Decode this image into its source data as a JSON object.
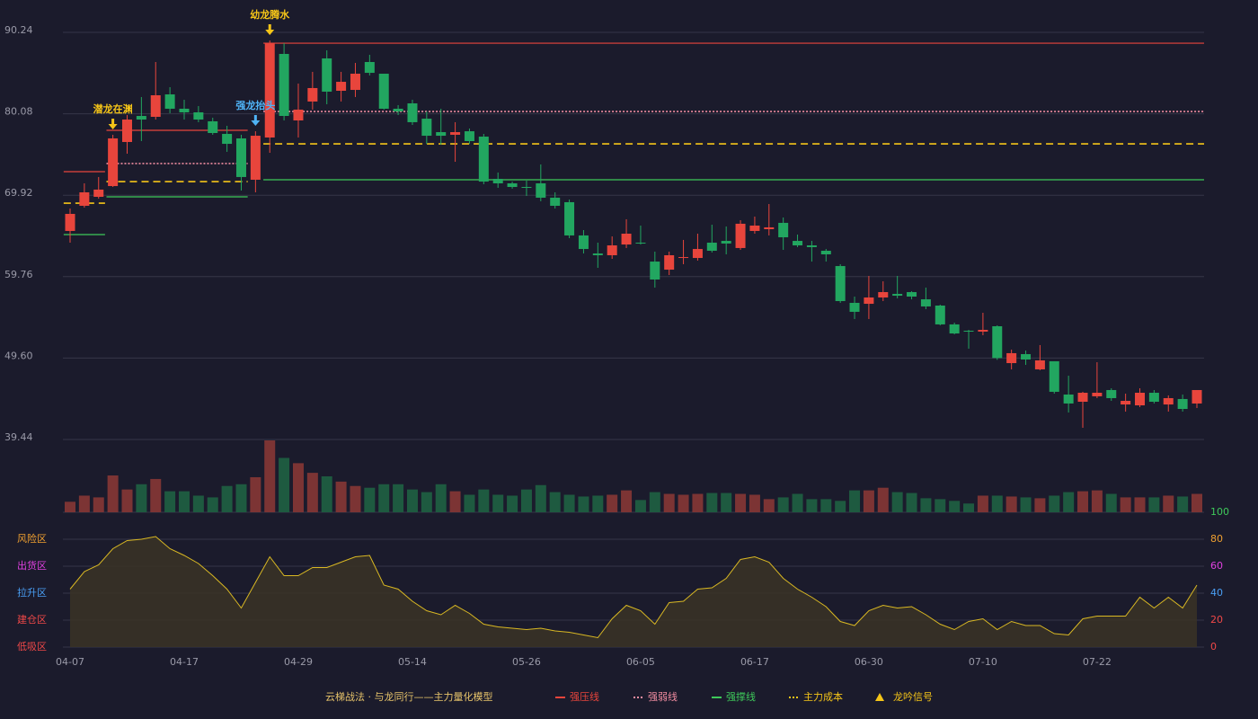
{
  "chart_data": [
    {
      "type": "candlestick",
      "categories": [
        "04-07",
        null,
        null,
        null,
        null,
        null,
        null,
        null,
        "04-17",
        null,
        null,
        null,
        null,
        null,
        null,
        null,
        "04-29",
        null,
        null,
        null,
        null,
        null,
        null,
        null,
        "05-14",
        null,
        null,
        null,
        null,
        null,
        null,
        null,
        "05-26",
        null,
        null,
        null,
        null,
        null,
        null,
        null,
        "06-05",
        null,
        null,
        null,
        null,
        null,
        null,
        null,
        "06-17",
        null,
        null,
        null,
        null,
        null,
        null,
        null,
        "06-30",
        null,
        null,
        null,
        null,
        null,
        null,
        null,
        "07-10",
        null,
        null,
        null,
        null,
        null,
        null,
        null,
        "07-22",
        null,
        null,
        null,
        null,
        null,
        null,
        null
      ],
      "open": [
        65.46,
        68.6,
        69.72,
        71.06,
        76.56,
        79.81,
        79.7,
        82.5,
        80.71,
        80.26,
        79.14,
        77.57,
        77.01,
        71.85,
        77.12,
        87.55,
        79.25,
        81.61,
        86.99,
        82.95,
        83.06,
        86.54,
        85.08,
        80.71,
        81.38,
        79.47,
        77.79,
        77.46,
        77.9,
        77.23,
        71.96,
        71.4,
        70.95,
        71.4,
        69.61,
        69.05,
        64.9,
        62.65,
        62.43,
        63.77,
        64.0,
        61.64,
        60.63,
        62.09,
        62.09,
        64.0,
        64.22,
        63.33,
        65.46,
        65.68,
        66.47,
        64.22,
        63.66,
        62.99,
        61.08,
        56.49,
        56.37,
        57.16,
        57.61,
        57.83,
        56.93,
        56.15,
        53.8,
        53.01,
        52.9,
        53.57,
        48.97,
        50.09,
        48.19,
        49.2,
        45.05,
        44.15,
        44.83,
        45.61,
        43.81,
        43.7,
        45.27,
        43.81,
        44.49,
        43.93
      ],
      "high": [
        68.26,
        71.4,
        72.19,
        77.46,
        79.92,
        82.17,
        86.54,
        83.4,
        81.83,
        81.04,
        79.59,
        78.58,
        77.46,
        77.9,
        89.23,
        88.89,
        83.85,
        85.31,
        88.0,
        85.31,
        86.43,
        87.44,
        85.08,
        81.16,
        81.83,
        80.37,
        80.71,
        79.03,
        78.24,
        77.57,
        72.75,
        71.62,
        71.74,
        73.76,
        70.28,
        69.38,
        65.57,
        64.0,
        64.78,
        66.92,
        66.13,
        62.88,
        62.88,
        64.34,
        65.12,
        66.24,
        66.02,
        66.8,
        67.25,
        68.82,
        67.14,
        65.01,
        64.22,
        63.21,
        61.31,
        57.27,
        59.85,
        59.18,
        59.85,
        57.94,
        58.39,
        56.26,
        54.02,
        53.12,
        55.25,
        53.68,
        50.65,
        50.54,
        51.22,
        49.2,
        47.4,
        45.39,
        49.08,
        45.83,
        45.16,
        45.83,
        45.61,
        44.94,
        45.05,
        45.61
      ],
      "low": [
        64.0,
        68.37,
        69.49,
        70.95,
        75.1,
        76.67,
        79.36,
        80.15,
        79.36,
        79.03,
        77.46,
        75.33,
        70.5,
        70.28,
        75.21,
        79.25,
        77.12,
        80.6,
        81.27,
        81.61,
        82.17,
        84.86,
        80.6,
        79.92,
        78.69,
        76.33,
        76.22,
        74.09,
        76.33,
        71.29,
        70.84,
        70.73,
        69.83,
        69.16,
        68.26,
        64.56,
        62.65,
        60.86,
        61.98,
        63.33,
        63.77,
        58.39,
        59.96,
        61.31,
        61.76,
        62.77,
        62.54,
        63.1,
        65.12,
        64.9,
        63.1,
        63.44,
        61.64,
        61.64,
        56.49,
        54.47,
        54.47,
        56.71,
        57.05,
        56.93,
        55.7,
        53.68,
        52.56,
        50.77,
        52.45,
        49.38,
        48.19,
        48.75,
        48.08,
        45.16,
        42.81,
        40.9,
        44.6,
        44.26,
        42.92,
        43.48,
        43.93,
        42.92,
        42.92,
        43.37
      ],
      "close": [
        67.59,
        70.28,
        70.62,
        77.01,
        79.36,
        79.36,
        82.39,
        80.71,
        80.26,
        79.36,
        77.68,
        76.33,
        72.19,
        77.34,
        88.89,
        79.81,
        80.6,
        83.29,
        82.84,
        84.07,
        85.08,
        85.19,
        80.71,
        80.37,
        79.03,
        77.34,
        77.34,
        77.79,
        76.67,
        71.62,
        71.4,
        70.95,
        70.84,
        69.61,
        68.6,
        64.9,
        63.21,
        62.43,
        63.66,
        65.12,
        63.89,
        59.4,
        62.43,
        62.2,
        63.21,
        62.99,
        63.89,
        66.36,
        66.13,
        65.91,
        64.67,
        63.66,
        63.44,
        62.54,
        56.71,
        55.37,
        57.16,
        57.83,
        57.38,
        57.27,
        56.04,
        53.8,
        52.67,
        52.9,
        53.12,
        49.6,
        50.21,
        49.42,
        49.31,
        45.39,
        43.93,
        45.27,
        45.27,
        44.6,
        44.26,
        45.27,
        44.15,
        44.6,
        43.25,
        45.61
      ],
      "up_color": "#e8453c",
      "down_color": "#22a660",
      "ylim": [
        39.44,
        90.24
      ],
      "yticks": [
        39.44,
        {
          "value": 49.6,
          "label": "49.60"
        },
        59.76,
        69.92,
        80.08,
        90.24
      ],
      "grid": true,
      "levels": [
        {
          "name": "强压线",
          "color": "#e8453c",
          "style": "solid",
          "values": [
            72.86,
            72.86,
            72.86,
            78.02,
            78.02,
            78.02,
            78.02,
            78.02,
            78.02,
            78.02,
            78.02,
            78.02,
            78.02,
            null,
            88.89,
            88.89,
            88.89,
            88.89,
            88.89,
            88.89,
            88.89,
            88.89,
            88.89,
            88.89,
            88.89,
            88.89,
            88.89,
            88.89,
            88.89,
            88.89,
            88.89,
            88.89,
            88.89,
            88.89,
            88.89,
            88.89,
            88.89,
            88.89,
            88.89,
            88.89,
            88.89,
            88.89,
            88.89,
            88.89,
            88.89,
            88.89,
            88.89,
            88.89,
            88.89,
            88.89,
            88.89,
            88.89,
            88.89,
            88.89,
            88.89,
            88.89,
            88.89,
            88.89,
            88.89,
            88.89,
            88.89,
            88.89,
            88.89,
            88.89,
            88.89,
            88.89,
            88.89,
            88.89,
            88.89,
            88.89,
            88.89,
            88.89,
            88.89,
            88.89,
            88.89,
            88.89,
            88.89,
            88.89,
            88.89,
            88.89
          ]
        },
        {
          "name": "强弱线",
          "color": "#f08ca0",
          "style": "dotted",
          "values": [
            null,
            null,
            null,
            73.87,
            73.87,
            73.87,
            73.87,
            73.87,
            73.87,
            73.87,
            73.87,
            73.87,
            73.87,
            null,
            80.37,
            80.37,
            80.37,
            80.37,
            80.37,
            80.37,
            80.37,
            80.37,
            80.37,
            80.37,
            80.37,
            80.37,
            80.37,
            80.37,
            80.37,
            80.37,
            80.37,
            80.37,
            80.37,
            80.37,
            80.37,
            80.37,
            80.37,
            80.37,
            80.37,
            80.37,
            80.37,
            80.37,
            80.37,
            80.37,
            80.37,
            80.37,
            80.37,
            80.37,
            80.37,
            80.37,
            80.37,
            80.37,
            80.37,
            80.37,
            80.37,
            80.37,
            80.37,
            80.37,
            80.37,
            80.37,
            80.37,
            80.37,
            80.37,
            80.37,
            80.37,
            80.37,
            80.37,
            80.37,
            80.37,
            80.37,
            80.37,
            80.37,
            80.37,
            80.37,
            80.37,
            80.37,
            80.37,
            80.37,
            80.37,
            80.37
          ]
        },
        {
          "name": "强撑线",
          "color": "#3ec95a",
          "style": "solid",
          "values": [
            65.01,
            65.01,
            65.01,
            69.72,
            69.72,
            69.72,
            69.72,
            69.72,
            69.72,
            69.72,
            69.72,
            69.72,
            69.72,
            null,
            71.85,
            71.85,
            71.85,
            71.85,
            71.85,
            71.85,
            71.85,
            71.85,
            71.85,
            71.85,
            71.85,
            71.85,
            71.85,
            71.85,
            71.85,
            71.85,
            71.85,
            71.85,
            71.85,
            71.85,
            71.85,
            71.85,
            71.85,
            71.85,
            71.85,
            71.85,
            71.85,
            71.85,
            71.85,
            71.85,
            71.85,
            71.85,
            71.85,
            71.85,
            71.85,
            71.85,
            71.85,
            71.85,
            71.85,
            71.85,
            71.85,
            71.85,
            71.85,
            71.85,
            71.85,
            71.85,
            71.85,
            71.85,
            71.85,
            71.85,
            71.85,
            71.85,
            71.85,
            71.85,
            71.85,
            71.85,
            71.85,
            71.85,
            71.85,
            71.85,
            71.85,
            71.85,
            71.85,
            71.85,
            71.85,
            71.85
          ]
        },
        {
          "name": "主力成本",
          "color": "#f5c518",
          "style": "dashed",
          "values": [
            68.93,
            68.93,
            68.93,
            71.62,
            71.62,
            71.62,
            71.62,
            71.62,
            71.62,
            71.62,
            71.62,
            71.62,
            71.62,
            null,
            76.33,
            76.33,
            76.33,
            76.33,
            76.33,
            76.33,
            76.33,
            76.33,
            76.33,
            76.33,
            76.33,
            76.33,
            76.33,
            76.33,
            76.33,
            76.33,
            76.33,
            76.33,
            76.33,
            76.33,
            76.33,
            76.33,
            76.33,
            76.33,
            76.33,
            76.33,
            76.33,
            76.33,
            76.33,
            76.33,
            76.33,
            76.33,
            76.33,
            76.33,
            76.33,
            76.33,
            76.33,
            76.33,
            76.33,
            76.33,
            76.33,
            76.33,
            76.33,
            76.33,
            76.33,
            76.33,
            76.33,
            76.33,
            76.33,
            76.33,
            76.33,
            76.33,
            76.33,
            76.33,
            76.33,
            76.33,
            76.33,
            76.33,
            76.33,
            76.33,
            76.33,
            76.33,
            76.33,
            76.33,
            76.33,
            76.33
          ]
        }
      ],
      "signals": [
        {
          "index": 3,
          "label": "潜龙在渊",
          "color": "#f5c518"
        },
        {
          "index": 13,
          "label": "强龙抬头",
          "color": "#4fb3f6"
        },
        {
          "index": 14,
          "label": "幼龙腾水",
          "color": "#f5c518"
        }
      ],
      "signal_legend": "龙吟信号",
      "signal_legend_color": "#f5c518",
      "legend_title": "云梯战法 · 与龙同行——主力量化模型",
      "legend_title_color": "#e6c36a"
    },
    {
      "type": "bar",
      "up_color": "#7c3434",
      "down_color": "#1e5a40",
      "values": [
        12,
        19,
        17,
        42,
        26,
        32,
        38,
        24,
        24,
        19,
        17,
        30,
        32,
        40,
        82,
        62,
        56,
        45,
        41,
        35,
        30,
        28,
        32,
        32,
        26,
        23,
        32,
        24,
        20,
        26,
        20,
        19,
        26,
        31,
        23,
        20,
        18,
        19,
        20,
        25,
        14,
        23,
        21,
        20,
        21,
        22,
        22,
        21,
        20,
        15,
        17,
        21,
        15,
        15,
        13,
        25,
        25,
        28,
        23,
        22,
        16,
        15,
        13,
        10,
        19,
        19,
        18,
        17,
        16,
        19,
        23,
        24,
        25,
        21,
        17,
        17,
        17,
        19,
        18,
        21
      ]
    },
    {
      "type": "line",
      "color": "#d9b823",
      "fill": "#3a3326",
      "values": [
        43,
        56,
        61,
        73,
        79,
        80,
        82,
        73,
        68,
        62,
        53,
        43,
        29,
        48,
        67,
        53,
        53,
        59,
        59,
        63,
        67,
        68,
        46,
        43,
        34,
        27,
        24,
        31,
        25,
        17,
        15,
        14,
        13,
        14,
        12,
        11,
        9,
        7,
        21,
        31,
        27,
        17,
        33,
        34,
        43,
        44,
        51,
        65,
        67,
        63,
        51,
        43,
        37,
        30,
        19,
        16,
        27,
        31,
        29,
        30,
        24,
        17,
        13,
        19,
        21,
        13,
        19,
        16,
        16,
        10,
        9,
        21,
        23,
        23,
        23,
        37,
        29,
        37,
        29,
        46
      ],
      "ylim": [
        0,
        100
      ],
      "yticks": [
        0,
        20,
        40,
        60,
        80,
        100
      ],
      "ytick_colors": [
        "#f04848",
        "#f04848",
        "#4a9ff5",
        "#e040e0",
        "#f0a030",
        "#3ec95a"
      ],
      "zones": [
        {
          "value": 80,
          "label": "风险区",
          "color": "#f0a030"
        },
        {
          "value": 60,
          "label": "出货区",
          "color": "#e040e0"
        },
        {
          "value": 40,
          "label": "拉升区",
          "color": "#4a9ff5"
        },
        {
          "value": 20,
          "label": "建仓区",
          "color": "#f04848"
        },
        {
          "value": 0,
          "label": "低吸区",
          "color": "#f04848"
        }
      ]
    }
  ]
}
